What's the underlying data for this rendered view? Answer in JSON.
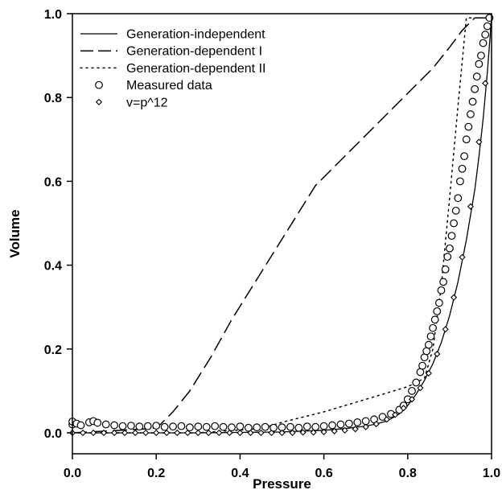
{
  "chart_data": {
    "type": "line",
    "xlabel": "Pressure",
    "ylabel": "Volume",
    "xlim": [
      0.0,
      1.0
    ],
    "ylim": [
      -0.05,
      1.0
    ],
    "x_ticks": [
      0.0,
      0.2,
      0.4,
      0.6,
      0.8,
      1.0
    ],
    "y_ticks": [
      0.0,
      0.2,
      0.4,
      0.6,
      0.8,
      1.0
    ],
    "x_tick_labels": [
      "0.0",
      "0.2",
      "0.4",
      "0.6",
      "0.8",
      "1.0"
    ],
    "y_tick_labels": [
      "0.0",
      "0.2",
      "0.4",
      "0.6",
      "0.8",
      "1.0"
    ],
    "grid": false,
    "legend_position": "top-left",
    "series": [
      {
        "name": "Generation-independent",
        "style": "solid",
        "x": [
          0.0,
          0.3,
          0.5,
          0.6,
          0.65,
          0.7,
          0.72,
          0.75,
          0.78,
          0.8,
          0.82,
          0.84,
          0.86,
          0.88,
          0.9,
          0.92,
          0.94,
          0.96,
          0.97,
          0.98,
          0.99,
          1.0
        ],
        "y": [
          0.0,
          0.0,
          0.002,
          0.006,
          0.01,
          0.016,
          0.02,
          0.028,
          0.045,
          0.065,
          0.092,
          0.125,
          0.165,
          0.215,
          0.28,
          0.36,
          0.46,
          0.58,
          0.66,
          0.75,
          0.86,
          0.99
        ]
      },
      {
        "name": "Generation-dependent I",
        "style": "dashed",
        "x": [
          0.0,
          0.19,
          0.21,
          0.24,
          0.28,
          0.33,
          0.38,
          0.43,
          0.48,
          0.53,
          0.58,
          0.65,
          0.72,
          0.8,
          0.86,
          0.9,
          0.93,
          0.96,
          1.0
        ],
        "y": [
          0.0,
          0.01,
          0.02,
          0.05,
          0.1,
          0.18,
          0.27,
          0.35,
          0.43,
          0.51,
          0.59,
          0.66,
          0.73,
          0.81,
          0.87,
          0.92,
          0.96,
          0.99,
          0.99
        ]
      },
      {
        "name": "Generation-dependent II",
        "style": "dotted",
        "x": [
          0.0,
          0.3,
          0.45,
          0.5,
          0.6,
          0.7,
          0.8,
          0.84,
          0.86,
          0.88,
          0.9,
          0.92,
          0.94,
          0.97,
          1.0
        ],
        "y": [
          0.0,
          0.0,
          0.01,
          0.025,
          0.05,
          0.08,
          0.11,
          0.13,
          0.2,
          0.35,
          0.56,
          0.78,
          0.99,
          0.99,
          0.99
        ]
      },
      {
        "name": "Measured data",
        "marker": "circle",
        "x": [
          0.0,
          0.0,
          0.01,
          0.02,
          0.04,
          0.05,
          0.06,
          0.08,
          0.1,
          0.12,
          0.14,
          0.16,
          0.18,
          0.2,
          0.22,
          0.24,
          0.26,
          0.28,
          0.3,
          0.32,
          0.34,
          0.36,
          0.38,
          0.4,
          0.42,
          0.44,
          0.46,
          0.48,
          0.5,
          0.52,
          0.54,
          0.56,
          0.58,
          0.6,
          0.62,
          0.64,
          0.66,
          0.68,
          0.7,
          0.72,
          0.74,
          0.76,
          0.78,
          0.79,
          0.8,
          0.81,
          0.82,
          0.83,
          0.835,
          0.84,
          0.845,
          0.85,
          0.855,
          0.86,
          0.865,
          0.87,
          0.875,
          0.88,
          0.885,
          0.89,
          0.895,
          0.9,
          0.905,
          0.91,
          0.915,
          0.92,
          0.925,
          0.93,
          0.935,
          0.94,
          0.945,
          0.95,
          0.955,
          0.96,
          0.965,
          0.97,
          0.975,
          0.98,
          0.985,
          0.99,
          0.995
        ],
        "y": [
          0.02,
          0.027,
          0.022,
          0.018,
          0.025,
          0.028,
          0.024,
          0.02,
          0.018,
          0.016,
          0.017,
          0.015,
          0.016,
          0.017,
          0.014,
          0.015,
          0.016,
          0.013,
          0.015,
          0.014,
          0.016,
          0.014,
          0.013,
          0.015,
          0.012,
          0.013,
          0.014,
          0.012,
          0.013,
          0.014,
          0.012,
          0.015,
          0.014,
          0.016,
          0.018,
          0.02,
          0.022,
          0.025,
          0.028,
          0.032,
          0.038,
          0.045,
          0.055,
          0.065,
          0.08,
          0.1,
          0.12,
          0.145,
          0.16,
          0.18,
          0.195,
          0.21,
          0.23,
          0.25,
          0.27,
          0.29,
          0.31,
          0.34,
          0.36,
          0.39,
          0.42,
          0.44,
          0.47,
          0.5,
          0.53,
          0.56,
          0.6,
          0.63,
          0.66,
          0.7,
          0.73,
          0.76,
          0.79,
          0.82,
          0.85,
          0.88,
          0.9,
          0.93,
          0.95,
          0.97,
          0.99
        ]
      },
      {
        "name": "v=p^12",
        "marker": "diamond",
        "x": [
          0.0,
          0.025,
          0.05,
          0.075,
          0.1,
          0.125,
          0.15,
          0.175,
          0.2,
          0.225,
          0.25,
          0.275,
          0.3,
          0.325,
          0.35,
          0.375,
          0.4,
          0.425,
          0.45,
          0.475,
          0.5,
          0.525,
          0.55,
          0.575,
          0.6,
          0.625,
          0.65,
          0.675,
          0.7,
          0.725,
          0.75,
          0.77,
          0.79,
          0.81,
          0.83,
          0.85,
          0.87,
          0.89,
          0.91,
          0.93,
          0.95,
          0.97,
          0.985
        ],
        "y": [
          0.0,
          0.0,
          0.0,
          0.0,
          0.0,
          0.0,
          0.0,
          0.0,
          0.0,
          0.0,
          0.0,
          0.0,
          0.0,
          0.0,
          0.0,
          0.0,
          0.0,
          0.0,
          0.0,
          0.0,
          0.0,
          0.0,
          0.001,
          0.001,
          0.002,
          0.004,
          0.006,
          0.009,
          0.014,
          0.021,
          0.032,
          0.043,
          0.059,
          0.08,
          0.107,
          0.142,
          0.188,
          0.247,
          0.323,
          0.419,
          0.54,
          0.694,
          0.834
        ]
      }
    ]
  }
}
